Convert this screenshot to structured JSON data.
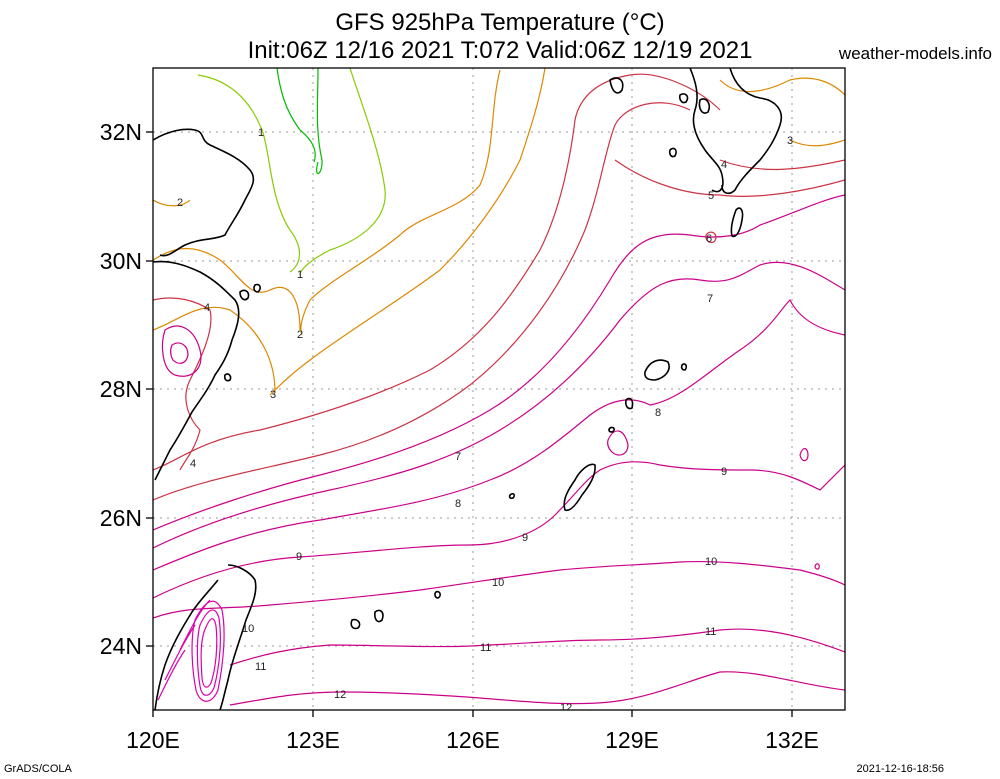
{
  "header": {
    "title": "GFS 925hPa Temperature (°C)",
    "subtitle": "Init:06Z 12/16 2021 T:072 Valid:06Z 12/19 2021",
    "site": "weather-models.info"
  },
  "footer": {
    "left": "GrADS/COLA",
    "right": "2021-12-16-18:56"
  },
  "map": {
    "region": {
      "lon_min": 120,
      "lon_max": 133,
      "lat_min": 23,
      "lat_max": 33
    },
    "lon_ticks": [
      "120E",
      "123E",
      "126E",
      "129E",
      "132E"
    ],
    "lat_ticks": [
      "24N",
      "26N",
      "28N",
      "30N",
      "32N"
    ],
    "contour_labels": [
      "1",
      "2",
      "3",
      "4",
      "5",
      "6",
      "7",
      "8",
      "9",
      "10",
      "11",
      "12"
    ],
    "colors": {
      "cold": "#00bb00",
      "cool": "#88cc00",
      "mild": "#dd8800",
      "warm": "#cc3344",
      "hot": "#cc0088",
      "hottest": "#dd00aa",
      "coast": "#000000",
      "grid": "#999999"
    }
  }
}
